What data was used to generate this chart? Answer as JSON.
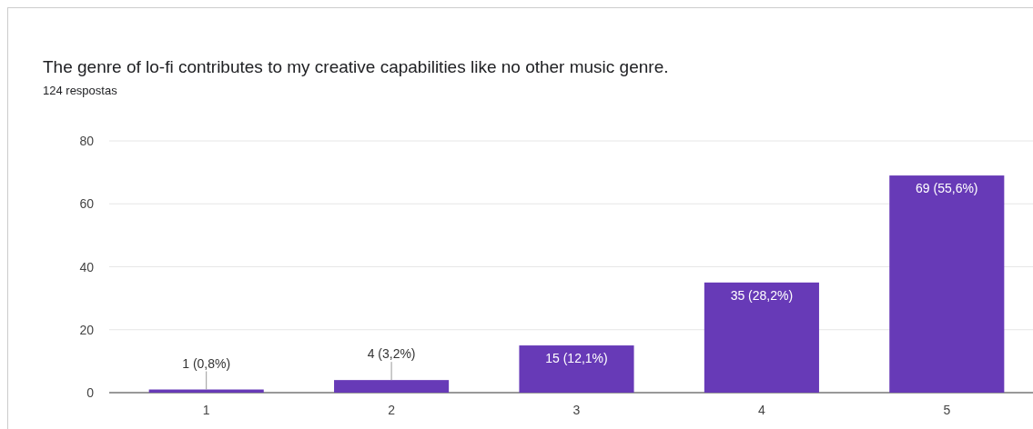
{
  "chart_data": {
    "type": "bar",
    "title": "The genre of lo-fi contributes to my creative capabilities like no other music genre.",
    "subtitle": "124 respostas",
    "categories": [
      "1",
      "2",
      "3",
      "4",
      "5"
    ],
    "values": [
      1,
      4,
      15,
      35,
      69
    ],
    "value_labels": [
      "1 (0,8%)",
      "4 (3,2%)",
      "15 (12,1%)",
      "35 (28,2%)",
      "69 (55,6%)"
    ],
    "color": "#673ab7",
    "ylim": [
      0,
      80
    ],
    "yticks": [
      0,
      20,
      40,
      60,
      80
    ],
    "grid": "y"
  }
}
